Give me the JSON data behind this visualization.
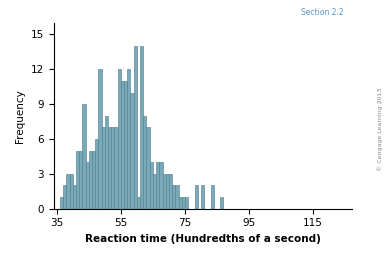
{
  "title": "",
  "xlabel": "Reaction time (Hundredths of a second)",
  "ylabel": "Frequency",
  "bar_color": "#7aaab8",
  "bar_edge_color": "#4a7a8a",
  "background_color": "#ffffff",
  "ylim": [
    0,
    16
  ],
  "yticks": [
    0,
    3,
    6,
    9,
    12,
    15
  ],
  "xticks": [
    35,
    55,
    75,
    95,
    115
  ],
  "bin_start": 36,
  "bin_width": 1,
  "frequencies": [
    1,
    2,
    3,
    3,
    2,
    5,
    5,
    9,
    4,
    5,
    5,
    6,
    12,
    7,
    8,
    7,
    7,
    7,
    12,
    11,
    11,
    12,
    10,
    14,
    1,
    14,
    8,
    7,
    4,
    3,
    4,
    4,
    3,
    3,
    3,
    2,
    2,
    1,
    1,
    1,
    0,
    0,
    2,
    0,
    2,
    0,
    0,
    2,
    0,
    0,
    1
  ],
  "watermark": "© Cengage Learning 2013",
  "section_label": "Section 2.2"
}
